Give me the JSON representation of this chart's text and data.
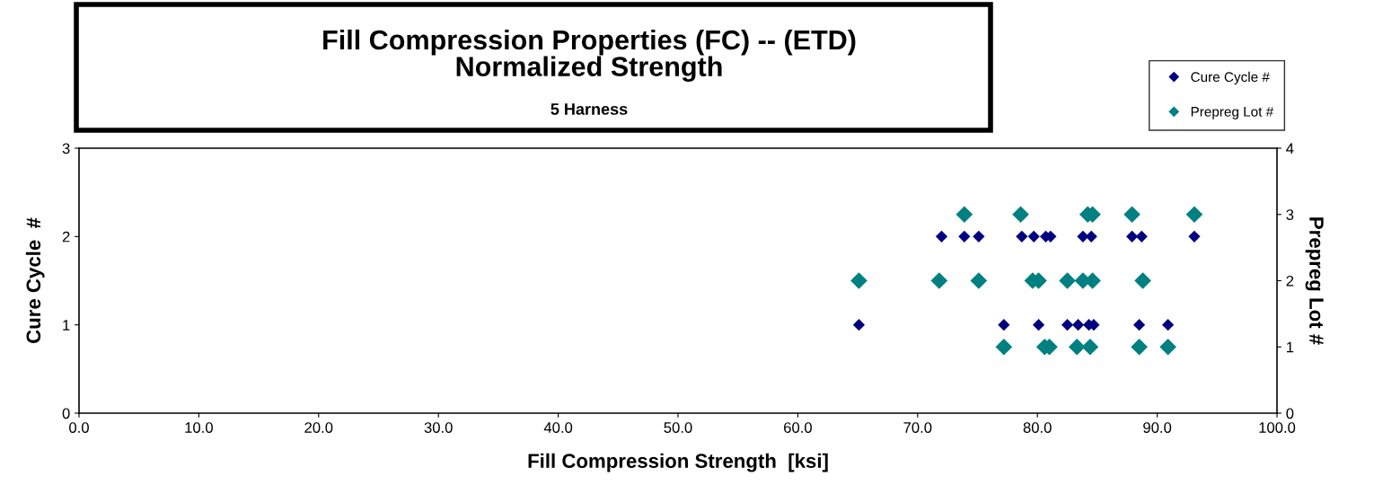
{
  "chart_data": {
    "type": "scatter",
    "title": "Fill Compression Properties (FC) -- (ETD)\nNormalized Strength",
    "subtitle": "5 Harness",
    "xlabel": "Fill Compression Strength  [ksi]",
    "ylabel": "Cure Cycle  #",
    "y2label": "Prepreg Lot #",
    "xlim": [
      0,
      100
    ],
    "xticks": [
      {
        "value": 0,
        "label": "0.0"
      },
      {
        "value": 10,
        "label": "10.0"
      },
      {
        "value": 20,
        "label": "20.0"
      },
      {
        "value": 30,
        "label": "30.0"
      },
      {
        "value": 40,
        "label": "40.0"
      },
      {
        "value": 50,
        "label": "50.0"
      },
      {
        "value": 60,
        "label": "60.0"
      },
      {
        "value": 70,
        "label": "70.0"
      },
      {
        "value": 80,
        "label": "80.0"
      },
      {
        "value": 90,
        "label": "90.0"
      },
      {
        "value": 100,
        "label": "100.0"
      }
    ],
    "ylim": [
      0,
      3
    ],
    "yticks": [
      0,
      1,
      2,
      3
    ],
    "y2lim": [
      0,
      4
    ],
    "y2ticks": [
      0,
      1,
      2,
      3,
      4
    ],
    "marker": "diamond",
    "grid": false,
    "legend": "top right",
    "series": [
      {
        "name": "Cure Cycle #",
        "color": "#000080",
        "axis": "y",
        "x": [
          72.0,
          73.9,
          75.1,
          78.7,
          79.7,
          80.7,
          81.1,
          83.8,
          84.5,
          87.9,
          88.7,
          93.1,
          65.1,
          77.2,
          80.1,
          82.5,
          83.4,
          84.3,
          84.7,
          88.5,
          90.9
        ],
        "values": [
          2,
          2,
          2,
          2,
          2,
          2,
          2,
          2,
          2,
          2,
          2,
          2,
          1,
          1,
          1,
          1,
          1,
          1,
          1,
          1,
          1
        ]
      },
      {
        "name": "Prepreg Lot #",
        "color": "#008080",
        "axis": "y2",
        "x": [
          73.9,
          78.6,
          84.2,
          84.6,
          87.9,
          93.1,
          65.1,
          71.8,
          75.1,
          79.6,
          80.1,
          82.5,
          83.8,
          84.6,
          88.8,
          77.2,
          80.6,
          81.0,
          83.3,
          84.4,
          88.5,
          90.9
        ],
        "values": [
          3,
          3,
          3,
          3,
          3,
          3,
          2,
          2,
          2,
          2,
          2,
          2,
          2,
          2,
          2,
          1,
          1,
          1,
          1,
          1,
          1,
          1
        ]
      }
    ]
  }
}
